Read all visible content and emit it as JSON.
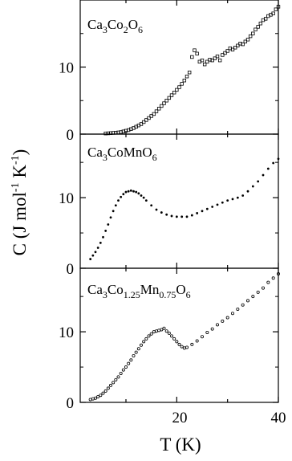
{
  "figure": {
    "ylabel": "C (J mol-1 K-1)",
    "xlabel": "T (K)",
    "x_ticks": [
      "20",
      "40"
    ]
  },
  "chart_data": [
    {
      "type": "scatter",
      "title": "",
      "annotation": "Ca3Co2O6",
      "xlabel": "T (K)",
      "ylabel": "C (J mol-1 K-1)",
      "xlim": [
        1,
        40
      ],
      "ylim": [
        0,
        20
      ],
      "yticks": [
        0,
        10
      ],
      "y_tick_labels": [
        "0",
        "10"
      ],
      "marker": "open-square",
      "series": [
        {
          "x": [
            6,
            6.5,
            7,
            7.5,
            8,
            8.5,
            9,
            9.5,
            10,
            10.5,
            11,
            11.5,
            12,
            12.5,
            13,
            13.5,
            14,
            14.5,
            15,
            15.5,
            16,
            16.5,
            17,
            17.5,
            18,
            18.5,
            19,
            19.5,
            20,
            20.5,
            21,
            21.5,
            22,
            22.5,
            23,
            23.5,
            24,
            24.5,
            25,
            25.5,
            26,
            26.5,
            27,
            27.5,
            28,
            28.5,
            29,
            29.5,
            30,
            30.5,
            31,
            31.5,
            32,
            32.5,
            33,
            33.5,
            34,
            34.5,
            35,
            35.5,
            36,
            36.5,
            37,
            37.5,
            38,
            38.5,
            39,
            39.5,
            40
          ],
          "y": [
            0.1,
            0.12,
            0.15,
            0.18,
            0.2,
            0.25,
            0.3,
            0.4,
            0.5,
            0.6,
            0.75,
            0.9,
            1.1,
            1.3,
            1.5,
            1.8,
            2.1,
            2.4,
            2.7,
            3.0,
            3.4,
            3.8,
            4.2,
            4.6,
            5.0,
            5.4,
            5.8,
            6.2,
            6.6,
            7.0,
            7.5,
            8.0,
            8.6,
            9.2,
            11.5,
            12.5,
            12.0,
            10.8,
            11.0,
            10.4,
            10.8,
            11.1,
            11.0,
            11.3,
            11.6,
            11.0,
            11.8,
            12.1,
            12.4,
            12.8,
            12.6,
            12.9,
            13.2,
            13.5,
            13.4,
            13.8,
            14.1,
            14.6,
            15.0,
            15.6,
            16.0,
            16.5,
            17.0,
            17.2,
            17.6,
            17.8,
            18.0,
            18.6,
            19.0
          ]
        }
      ]
    },
    {
      "type": "scatter",
      "title": "",
      "annotation": "Ca3CoMnO6",
      "xlabel": "T (K)",
      "ylabel": "C (J mol-1 K-1)",
      "xlim": [
        1,
        40
      ],
      "ylim": [
        0,
        19
      ],
      "yticks": [
        0,
        10
      ],
      "y_tick_labels": [
        "0",
        "10"
      ],
      "marker": "small-dot",
      "series": [
        {
          "x": [
            3,
            3.5,
            4,
            4.5,
            5,
            5.5,
            6,
            6.5,
            7,
            7.5,
            8,
            8.5,
            9,
            9.5,
            10,
            10.5,
            11,
            11.5,
            12,
            12.5,
            13,
            13.5,
            14,
            15,
            16,
            17,
            18,
            19,
            20,
            21,
            22,
            23,
            24,
            25,
            26,
            27,
            28,
            29,
            30,
            31,
            32,
            33,
            34,
            35,
            36,
            37,
            38,
            39,
            40
          ],
          "y": [
            1.3,
            1.8,
            2.3,
            2.9,
            3.6,
            4.4,
            5.3,
            6.2,
            7.2,
            8.1,
            8.9,
            9.6,
            10.1,
            10.5,
            10.8,
            10.9,
            11.0,
            10.9,
            10.8,
            10.6,
            10.3,
            10.0,
            9.6,
            8.9,
            8.3,
            7.9,
            7.6,
            7.4,
            7.3,
            7.3,
            7.3,
            7.5,
            7.8,
            8.1,
            8.4,
            8.7,
            9.0,
            9.3,
            9.6,
            9.8,
            10.0,
            10.3,
            10.9,
            11.6,
            12.3,
            13.2,
            14.1,
            14.9,
            15.5
          ]
        }
      ]
    },
    {
      "type": "scatter",
      "title": "",
      "annotation": "Ca3Co1.25Mn0.75O6",
      "xlabel": "T (K)",
      "ylabel": "C (J mol-1 K-1)",
      "xlim": [
        1,
        40
      ],
      "ylim": [
        0,
        19
      ],
      "yticks": [
        0,
        10
      ],
      "y_tick_labels": [
        "0",
        "10"
      ],
      "marker": "small-open-circle",
      "series": [
        {
          "x": [
            3,
            3.5,
            4,
            4.5,
            5,
            5.5,
            6,
            6.5,
            7,
            7.5,
            8,
            8.5,
            9,
            9.5,
            10,
            10.5,
            11,
            11.5,
            12,
            12.5,
            13,
            13.5,
            14,
            14.5,
            15,
            15.5,
            16,
            16.5,
            17,
            17.5,
            18,
            18.5,
            19,
            19.5,
            20,
            20.5,
            21,
            21.5,
            22,
            23,
            24,
            25,
            26,
            27,
            28,
            29,
            30,
            31,
            32,
            33,
            34,
            35,
            36,
            37,
            38,
            39,
            40
          ],
          "y": [
            0.4,
            0.5,
            0.6,
            0.8,
            1.0,
            1.3,
            1.6,
            2.0,
            2.4,
            2.8,
            3.2,
            3.6,
            4.1,
            4.6,
            5.0,
            5.5,
            6.0,
            6.6,
            7.1,
            7.6,
            8.1,
            8.6,
            9.0,
            9.4,
            9.7,
            10.0,
            10.1,
            10.2,
            10.3,
            10.5,
            10.1,
            9.8,
            9.4,
            9.0,
            8.6,
            8.2,
            7.9,
            7.7,
            7.8,
            8.2,
            8.7,
            9.3,
            9.9,
            10.4,
            11.0,
            11.5,
            12.0,
            12.6,
            13.2,
            13.8,
            14.4,
            15.0,
            15.6,
            16.2,
            17.0,
            17.6,
            18.2
          ]
        }
      ]
    }
  ]
}
